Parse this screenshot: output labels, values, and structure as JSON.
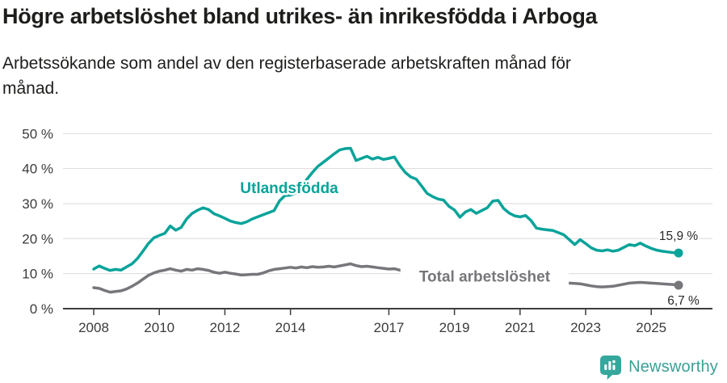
{
  "header": {},
  "footer": {
    "brand": "Newsworthy"
  },
  "colors": {
    "accent_teal": "#09a39a",
    "line_gray": "#77777b",
    "grid": "#d9d9d9",
    "axis": "#3d3d3d",
    "text_dark": "#1d1d1b",
    "tick_text": "#3b3b3b",
    "brand_teal": "#3aa096",
    "brand_icon": "#35a79c"
  },
  "chart_data": {
    "type": "line",
    "title": "Högre arbetslöshet bland utrikes- än inrikesfödda i Arboga",
    "subtitle": "Arbetssökande som andel av den registerbaserade arbetskraften månad för månad.",
    "subtitle_lines": [
      "Arbetssökande som andel av den registerbaserade arbetskraften månad för",
      "månad."
    ],
    "unit": "%",
    "grid": true,
    "legend_position": "inline-labels",
    "x_start": 2008,
    "points_per_year": 6,
    "x_end_approx": 2025.83,
    "ylim": [
      0,
      50
    ],
    "yticks": {
      "values": [
        0,
        10,
        20,
        30,
        40,
        50
      ],
      "labels": [
        "0 %",
        "10 %",
        "20 %",
        "30 %",
        "40 %",
        "50 %"
      ]
    },
    "xticks": {
      "values": [
        2008,
        2010,
        2012,
        2014,
        2017,
        2019,
        2021,
        2023,
        2025
      ],
      "labels": [
        "2008",
        "2010",
        "2012",
        "2014",
        "2017",
        "2019",
        "2021",
        "2023",
        "2025"
      ]
    },
    "series": [
      {
        "name": "Utlandsfödda",
        "color": "#09a39a",
        "label_pos": {
          "x": 2013.96,
          "y": 34.6
        },
        "label_bg": false,
        "end_label": "15,9 %",
        "end_value": 15.9,
        "end_label_offset": {
          "dx": 0,
          "dy": -16
        },
        "values": [
          11.3,
          12.2,
          11.5,
          10.9,
          11.2,
          11.0,
          11.9,
          12.8,
          14.3,
          16.4,
          18.6,
          20.2,
          20.9,
          21.5,
          23.6,
          22.4,
          23.2,
          25.6,
          27.2,
          28.1,
          28.8,
          28.3,
          27.1,
          26.5,
          25.8,
          25.0,
          24.6,
          24.3,
          24.8,
          25.6,
          26.2,
          26.8,
          27.4,
          28.0,
          30.8,
          32.3,
          32.4,
          33.0,
          34.8,
          36.9,
          38.9,
          40.6,
          41.8,
          43.0,
          44.2,
          45.3,
          45.7,
          45.8,
          42.3,
          42.9,
          43.5,
          42.7,
          43.2,
          42.6,
          42.9,
          43.3,
          40.9,
          38.9,
          37.6,
          37.0,
          35.0,
          32.9,
          32.0,
          31.3,
          31.0,
          29.2,
          28.2,
          26.1,
          27.6,
          28.3,
          27.2,
          28.0,
          28.8,
          30.7,
          30.9,
          28.6,
          27.3,
          26.5,
          26.2,
          26.6,
          25.2,
          23.0,
          22.7,
          22.5,
          22.3,
          21.7,
          21.1,
          19.7,
          18.3,
          19.7,
          18.6,
          17.4,
          16.7,
          16.5,
          16.8,
          16.4,
          16.7,
          17.5,
          18.3,
          18.0,
          18.7,
          17.9,
          17.2,
          16.7,
          16.4,
          16.2,
          16.0,
          15.9
        ]
      },
      {
        "name": "Total arbetslöshet",
        "color": "#77777b",
        "label_pos": {
          "x": 2019.92,
          "y": 9.3
        },
        "label_bg": true,
        "end_label": "6,7 %",
        "end_value": 6.7,
        "end_label_offset": {
          "dx": 6,
          "dy": 24
        },
        "values": [
          6.0,
          5.8,
          5.2,
          4.7,
          4.9,
          5.1,
          5.6,
          6.4,
          7.3,
          8.4,
          9.5,
          10.2,
          10.7,
          11.0,
          11.4,
          11.0,
          10.7,
          11.2,
          11.0,
          11.4,
          11.2,
          10.9,
          10.4,
          10.1,
          10.4,
          10.1,
          9.9,
          9.6,
          9.7,
          9.8,
          9.8,
          10.2,
          10.8,
          11.2,
          11.4,
          11.6,
          11.8,
          11.6,
          11.9,
          11.7,
          12.0,
          11.8,
          11.9,
          12.1,
          11.9,
          12.2,
          12.5,
          12.8,
          12.3,
          12.0,
          12.1,
          11.9,
          11.7,
          11.5,
          11.3,
          11.4,
          11.0,
          10.8,
          10.6,
          10.4,
          10.2,
          10.0,
          9.8,
          9.7,
          9.5,
          9.3,
          9.1,
          9.0,
          8.9,
          8.8,
          8.9,
          9.1,
          9.4,
          9.7,
          9.6,
          9.4,
          9.1,
          8.9,
          8.7,
          8.5,
          8.3,
          8.1,
          7.9,
          7.8,
          7.7,
          7.5,
          7.4,
          7.3,
          7.2,
          7.1,
          6.8,
          6.5,
          6.3,
          6.2,
          6.3,
          6.4,
          6.7,
          7.0,
          7.3,
          7.4,
          7.5,
          7.4,
          7.3,
          7.2,
          7.1,
          7.0,
          6.9,
          6.7
        ]
      }
    ]
  }
}
